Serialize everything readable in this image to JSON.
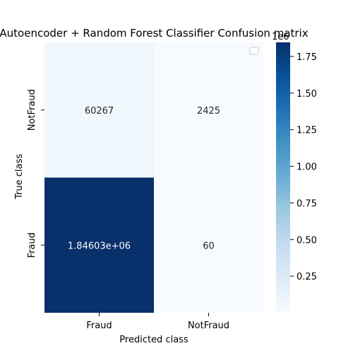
{
  "chart_data": {
    "type": "heatmap",
    "title": "Autoencoder + Random Forest Classifier Confusion matrix",
    "xlabel": "Predicted class",
    "ylabel": "True class",
    "x_categories": [
      "Fraud",
      "NotFraud"
    ],
    "y_categories": [
      "NotFraud",
      "Fraud"
    ],
    "values": [
      [
        60267,
        2425
      ],
      [
        1846030,
        60
      ]
    ],
    "cell_labels": [
      [
        "60267",
        "2425"
      ],
      [
        "1.84603e+06",
        "60"
      ]
    ],
    "colormap": "Blues",
    "colorbar": {
      "range": [
        60,
        1846030
      ],
      "ticks": [
        0.25,
        0.5,
        0.75,
        1.0,
        1.25,
        1.5,
        1.75
      ],
      "tick_labels": [
        "0.25",
        "0.50",
        "0.75",
        "1.00",
        "1.25",
        "1.50",
        "1.75"
      ],
      "multiplier_label": "1e6"
    },
    "legend": "top-right",
    "grid": false
  }
}
